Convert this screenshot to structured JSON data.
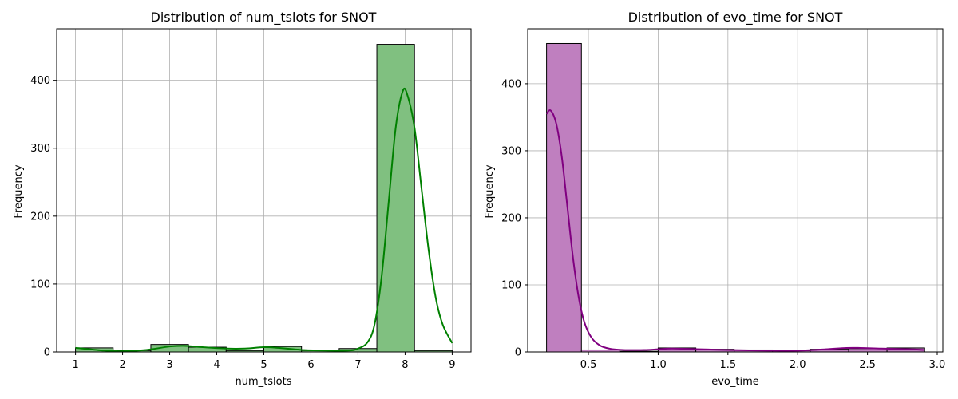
{
  "chart_data": [
    {
      "type": "bar",
      "title": "Distribution of num_tslots for SNOT",
      "xlabel": "num_tslots",
      "ylabel": "Frequency",
      "xlim": [
        0.6,
        9.4
      ],
      "ylim": [
        0,
        476
      ],
      "xticks": [
        1,
        2,
        3,
        4,
        5,
        6,
        7,
        8,
        9
      ],
      "xtick_labels": [
        "1",
        "2",
        "3",
        "4",
        "5",
        "6",
        "7",
        "8",
        "9"
      ],
      "yticks": [
        0,
        100,
        200,
        300,
        400
      ],
      "ytick_labels": [
        "0",
        "100",
        "200",
        "300",
        "400"
      ],
      "grid": true,
      "bar_fill": "#80c080",
      "bar_edge": "#000000",
      "kde_color": "#008000",
      "bins": [
        {
          "x0": 1.0,
          "x1": 1.8,
          "value": 6
        },
        {
          "x0": 1.8,
          "x1": 2.6,
          "value": 2
        },
        {
          "x0": 2.6,
          "x1": 3.4,
          "value": 11
        },
        {
          "x0": 3.4,
          "x1": 4.2,
          "value": 7
        },
        {
          "x0": 4.2,
          "x1": 5.0,
          "value": 2
        },
        {
          "x0": 5.0,
          "x1": 5.8,
          "value": 8
        },
        {
          "x0": 5.8,
          "x1": 6.6,
          "value": 2
        },
        {
          "x0": 6.6,
          "x1": 7.4,
          "value": 5
        },
        {
          "x0": 7.4,
          "x1": 8.2,
          "value": 453
        },
        {
          "x0": 8.2,
          "x1": 9.0,
          "value": 2
        }
      ],
      "kde": [
        [
          1.0,
          6
        ],
        [
          1.3,
          4
        ],
        [
          1.6,
          2
        ],
        [
          2.0,
          1
        ],
        [
          2.5,
          3
        ],
        [
          3.0,
          8
        ],
        [
          3.3,
          9
        ],
        [
          3.7,
          7
        ],
        [
          4.2,
          5
        ],
        [
          4.6,
          5
        ],
        [
          5.0,
          7
        ],
        [
          5.3,
          6
        ],
        [
          5.8,
          3
        ],
        [
          6.3,
          2
        ],
        [
          6.8,
          2
        ],
        [
          7.0,
          5
        ],
        [
          7.2,
          14
        ],
        [
          7.35,
          40
        ],
        [
          7.5,
          110
        ],
        [
          7.65,
          220
        ],
        [
          7.8,
          330
        ],
        [
          7.95,
          384
        ],
        [
          8.05,
          378
        ],
        [
          8.2,
          330
        ],
        [
          8.35,
          240
        ],
        [
          8.5,
          150
        ],
        [
          8.65,
          80
        ],
        [
          8.8,
          40
        ],
        [
          9.0,
          13
        ]
      ]
    },
    {
      "type": "bar",
      "title": "Distribution of evo_time for SNOT",
      "xlabel": "evo_time",
      "ylabel": "Frequency",
      "xlim": [
        0.065,
        3.04
      ],
      "ylim": [
        0,
        482
      ],
      "xticks": [
        0.5,
        1.0,
        1.5,
        2.0,
        2.5,
        3.0
      ],
      "xtick_labels": [
        "0.5",
        "1.0",
        "1.5",
        "2.0",
        "2.5",
        "3.0"
      ],
      "yticks": [
        0,
        100,
        200,
        300,
        400
      ],
      "ytick_labels": [
        "0",
        "100",
        "200",
        "300",
        "400"
      ],
      "grid": true,
      "bar_fill": "#bf7fbf",
      "bar_edge": "#000000",
      "kde_color": "#800080",
      "bins": [
        {
          "x0": 0.2,
          "x1": 0.45,
          "value": 460
        },
        {
          "x0": 0.45,
          "x1": 0.725,
          "value": 3
        },
        {
          "x0": 0.725,
          "x1": 1.0,
          "value": 1
        },
        {
          "x0": 1.0,
          "x1": 1.27,
          "value": 6
        },
        {
          "x0": 1.27,
          "x1": 1.545,
          "value": 4
        },
        {
          "x0": 1.545,
          "x1": 1.82,
          "value": 3
        },
        {
          "x0": 1.82,
          "x1": 2.09,
          "value": 2
        },
        {
          "x0": 2.09,
          "x1": 2.365,
          "value": 4
        },
        {
          "x0": 2.365,
          "x1": 2.64,
          "value": 5
        },
        {
          "x0": 2.64,
          "x1": 2.91,
          "value": 6
        }
      ],
      "kde": [
        [
          0.2,
          355
        ],
        [
          0.23,
          360
        ],
        [
          0.27,
          340
        ],
        [
          0.31,
          290
        ],
        [
          0.35,
          215
        ],
        [
          0.39,
          140
        ],
        [
          0.43,
          82
        ],
        [
          0.47,
          45
        ],
        [
          0.52,
          22
        ],
        [
          0.58,
          10
        ],
        [
          0.65,
          5
        ],
        [
          0.75,
          3
        ],
        [
          0.9,
          3
        ],
        [
          1.0,
          4
        ],
        [
          1.1,
          5
        ],
        [
          1.3,
          4
        ],
        [
          1.5,
          3
        ],
        [
          1.8,
          2
        ],
        [
          2.0,
          2
        ],
        [
          2.2,
          4
        ],
        [
          2.35,
          6
        ],
        [
          2.45,
          6
        ],
        [
          2.6,
          5
        ],
        [
          2.8,
          4
        ],
        [
          2.91,
          3
        ]
      ]
    }
  ]
}
